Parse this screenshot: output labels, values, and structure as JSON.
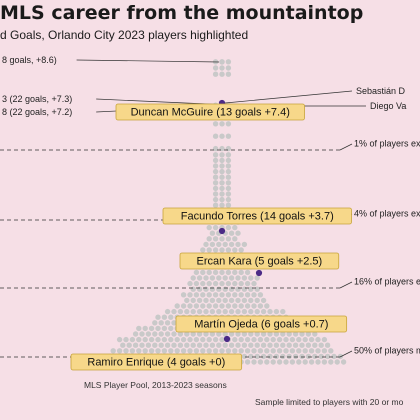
{
  "title": "MLS career from the mountaintop",
  "subtitle": "d Goals, Orlando City 2023 players highlighted",
  "note": "Sample limited to players with 20 or mo",
  "colors": {
    "background": "#f6dfe6",
    "dot": "#c9c9c9",
    "highlight_dot": "#4b2a86",
    "label_fill": "#f7d88a",
    "label_stroke": "#c8a43a"
  },
  "chart_data": {
    "type": "scatter",
    "xlabel": "MLS Player Pool, 2013-2023 seasons",
    "percentile_lines": [
      {
        "label": "1% of players ex",
        "value": 6.0
      },
      {
        "label": "4% of players ex",
        "value": 3.6
      },
      {
        "label": "16% of players ex",
        "value": 1.8
      },
      {
        "label": "50% of players me",
        "value": 0
      }
    ],
    "top_outliers": [
      {
        "label": "8 goals, +8.6)",
        "value": 8.6
      },
      {
        "label": "Sebastián D",
        "value": 7.4
      },
      {
        "label": "Diego Va",
        "value": 7.2
      },
      {
        "label": "3 (22 goals, +7.3)",
        "value": 7.3
      },
      {
        "label": "8 (22 goals, +7.2)",
        "value": 7.2
      }
    ],
    "highlighted": [
      {
        "name": "Duncan McGuire",
        "goals": 13,
        "g_minus_xg": 7.4,
        "label": "Duncan McGuire (13 goals +7.4)"
      },
      {
        "name": "Facundo Torres",
        "goals": 14,
        "g_minus_xg": 3.7,
        "label": "Facundo Torres (14 goals +3.7)"
      },
      {
        "name": "Ercan Kara",
        "goals": 5,
        "g_minus_xg": 2.5,
        "label": "Ercan Kara (5 goals +2.5)"
      },
      {
        "name": "Martín Ojeda",
        "goals": 6,
        "g_minus_xg": 0.7,
        "label": "Martín Ojeda (6 goals +0.7)"
      },
      {
        "name": "Ramiro Enrique",
        "goals": 4,
        "g_minus_xg": 0,
        "label": "Ramiro Enrique (4 goals +0)"
      }
    ]
  }
}
